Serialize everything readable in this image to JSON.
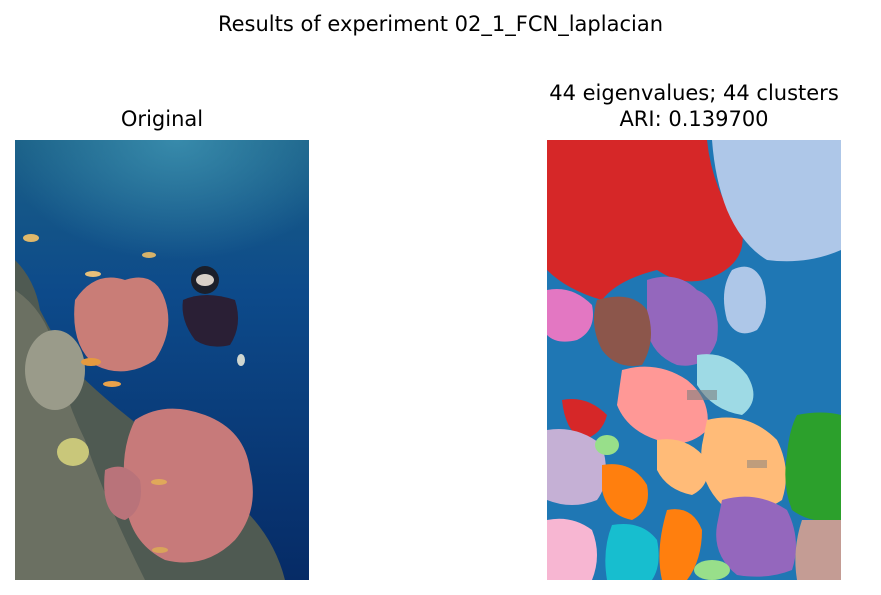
{
  "figure": {
    "suptitle": "Results of experiment 02_1_FCN_laplacian",
    "left_panel": {
      "title": "Original",
      "image": "underwater-coral-reef-diver-photo"
    },
    "right_panel": {
      "title_line1": "44 eigenvalues; 44 clusters",
      "title_line2": "ARI: 0.139700",
      "image": "segmentation-cluster-map"
    },
    "colors": {
      "blue": "#1f77b4",
      "red": "#d62728",
      "light_blue": "#aec7e8",
      "purple": "#9467bd",
      "brown": "#8c564b",
      "pink": "#e377c2",
      "salmon": "#ff9896",
      "peach": "#ffbb78",
      "orange": "#ff7f0e",
      "green": "#2ca02c",
      "light_green": "#98df8a",
      "cyan": "#17becf",
      "light_cyan": "#9edae5",
      "lavender": "#c5b0d5",
      "light_pink": "#f7b6d2",
      "tan": "#c49c94",
      "gray": "#7f7f7f"
    }
  }
}
